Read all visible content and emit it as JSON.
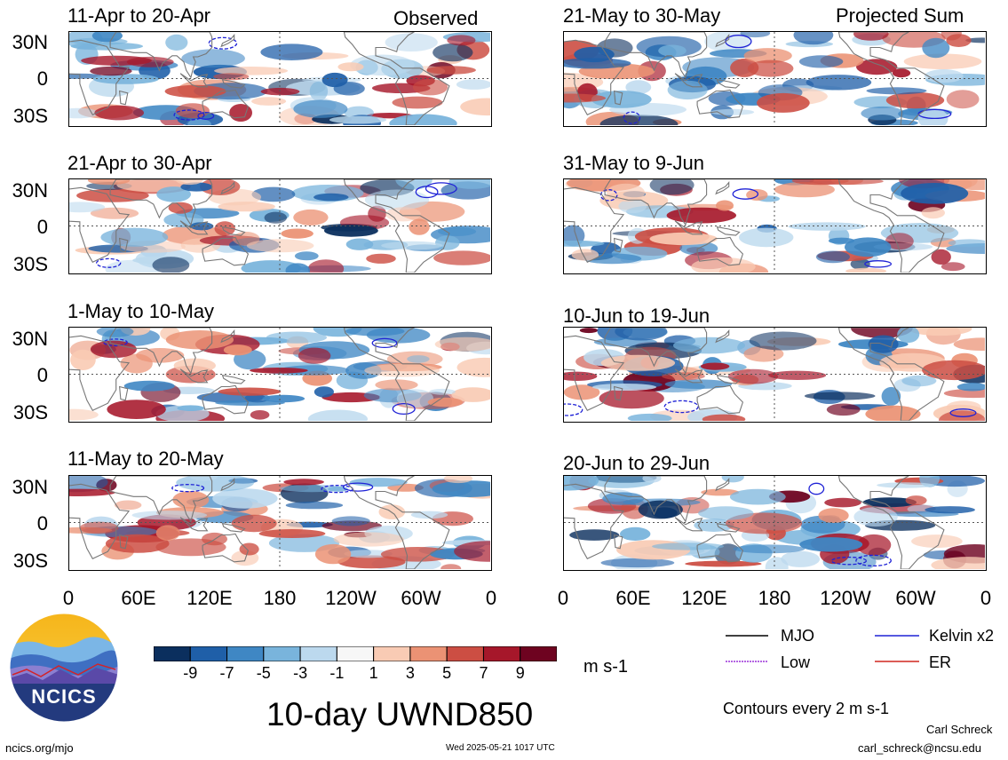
{
  "panels": [
    {
      "id": "p1",
      "title": "11-Apr to 20-Apr",
      "tag": "Observed",
      "seed": 11
    },
    {
      "id": "p2",
      "title": "21-Apr to 30-Apr",
      "tag": "",
      "seed": 23
    },
    {
      "id": "p3",
      "title": "1-May to 10-May",
      "tag": "",
      "seed": 37
    },
    {
      "id": "p4",
      "title": "11-May to 20-May",
      "tag": "",
      "seed": 41
    },
    {
      "id": "p5",
      "title": "21-May to 30-May",
      "tag": "Projected Sum",
      "seed": 53
    },
    {
      "id": "p6",
      "title": "31-May to 9-Jun",
      "tag": "",
      "seed": 67
    },
    {
      "id": "p7",
      "title": "10-Jun to 19-Jun",
      "tag": "",
      "seed": 71
    },
    {
      "id": "p8",
      "title": "20-Jun to 29-Jun",
      "tag": "",
      "seed": 89
    }
  ],
  "y_axis_labels": [
    "30N",
    "0",
    "30S"
  ],
  "x_axis_labels": [
    "0",
    "60E",
    "120E",
    "180",
    "120W",
    "60W",
    "0"
  ],
  "colorbar": {
    "unit": "m s-1",
    "labels": [
      "-9",
      "-7",
      "-5",
      "-3",
      "-1",
      "1",
      "3",
      "5",
      "7",
      "9"
    ],
    "colors": [
      "#0b2f5e",
      "#1f5fa8",
      "#3f87c4",
      "#79b4dc",
      "#bcd9ee",
      "#f7f7f7",
      "#f9cbb4",
      "#eb9274",
      "#cc4e43",
      "#a6172a",
      "#6e0320"
    ]
  },
  "legend": {
    "items": [
      {
        "label": "MJO",
        "color": "#000000",
        "dash": false
      },
      {
        "label": "Kelvin x2",
        "color": "#1f22d6",
        "dash": false
      },
      {
        "label": "Low",
        "color": "#9b30d9",
        "dash": true
      },
      {
        "label": "ER",
        "color": "#d0261e",
        "dash": false
      }
    ],
    "contours_note": "Contours every 2 m s-1"
  },
  "main_title": "10-day UWND850",
  "logo": {
    "text": "NCICS"
  },
  "footer": {
    "url": "ncics.org/mjo",
    "timestamp": "Wed 2025-05-21 1017 UTC",
    "author": "Carl Schreck",
    "email": "carl_schreck@ncsu.edu"
  }
}
